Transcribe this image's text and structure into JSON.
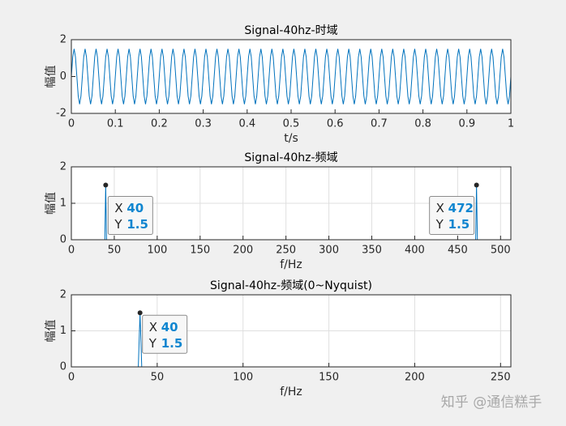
{
  "chart_data": [
    {
      "type": "line",
      "title": "Signal-40hz-时域",
      "xlabel": "t/s",
      "ylabel": "幅值",
      "color": "#0072bd",
      "grid": false,
      "xlim": [
        0,
        1
      ],
      "xticks": [
        0,
        0.1,
        0.2,
        0.3,
        0.4,
        0.5,
        0.6,
        0.7,
        0.8,
        0.9,
        1
      ],
      "ylim": [
        -2,
        2
      ],
      "yticks": [
        -2,
        0,
        2
      ],
      "x": [
        0,
        0.003125,
        0.00625,
        0.009375,
        0.0125,
        0.015625,
        0.01875,
        0.021875,
        0.025,
        0.028125,
        0.03125,
        0.034375,
        0.0375,
        0.040625,
        0.04375,
        0.046875,
        0.05,
        0.053125,
        0.05625,
        0.059375,
        0.0625,
        0.065625,
        0.06875,
        0.071875,
        0.075,
        0.078125,
        0.08125,
        0.084375,
        0.0875,
        0.090625,
        0.09375,
        0.096875,
        0.1,
        0.103125,
        0.10625,
        0.109375,
        0.1125,
        0.115625,
        0.11875,
        0.121875,
        0.125,
        0.128125,
        0.13125,
        0.134375,
        0.1375,
        0.140625,
        0.14375,
        0.146875,
        0.15,
        0.153125,
        0.15625,
        0.159375,
        0.1625,
        0.165625,
        0.16875,
        0.171875,
        0.175,
        0.178125,
        0.18125,
        0.184375,
        0.1875,
        0.190625,
        0.19375,
        0.196875,
        0.2,
        0.203125,
        0.20625,
        0.209375,
        0.2125,
        0.215625,
        0.21875,
        0.221875,
        0.225,
        0.228125,
        0.23125,
        0.234375,
        0.2375,
        0.240625,
        0.24375,
        0.246875,
        0.25,
        0.253125,
        0.25625,
        0.259375,
        0.2625,
        0.265625,
        0.26875,
        0.271875,
        0.275,
        0.278125,
        0.28125,
        0.284375,
        0.2875,
        0.290625,
        0.29375,
        0.296875,
        0.3,
        0.303125,
        0.30625,
        0.309375,
        0.3125,
        0.315625,
        0.31875,
        0.321875,
        0.325,
        0.328125,
        0.33125,
        0.334375,
        0.3375,
        0.340625,
        0.34375,
        0.346875,
        0.35,
        0.353125,
        0.35625,
        0.359375,
        0.3625,
        0.365625,
        0.36875,
        0.371875,
        0.375,
        0.378125,
        0.38125,
        0.384375,
        0.3875,
        0.390625,
        0.39375,
        0.396875,
        0.4,
        0.403125,
        0.40625,
        0.409375,
        0.4125,
        0.415625,
        0.41875,
        0.421875,
        0.425,
        0.428125,
        0.43125,
        0.434375,
        0.4375,
        0.440625,
        0.44375,
        0.446875,
        0.45,
        0.453125,
        0.45625,
        0.459375,
        0.4625,
        0.465625,
        0.46875,
        0.471875,
        0.475,
        0.478125,
        0.48125,
        0.484375,
        0.4875,
        0.490625,
        0.49375,
        0.496875,
        0.5,
        0.503125,
        0.50625,
        0.509375,
        0.5125,
        0.515625,
        0.51875,
        0.521875,
        0.525,
        0.528125,
        0.53125,
        0.534375,
        0.5375,
        0.540625,
        0.54375,
        0.546875,
        0.55,
        0.553125,
        0.55625,
        0.559375,
        0.5625,
        0.565625,
        0.56875,
        0.571875,
        0.575,
        0.578125,
        0.58125,
        0.584375,
        0.5875,
        0.590625,
        0.59375,
        0.596875,
        0.6,
        0.603125,
        0.60625,
        0.609375,
        0.6125,
        0.615625,
        0.61875,
        0.621875,
        0.625,
        0.628125,
        0.63125,
        0.634375,
        0.6375,
        0.640625,
        0.64375,
        0.646875,
        0.65,
        0.653125,
        0.65625,
        0.659375,
        0.6625,
        0.665625,
        0.66875,
        0.671875,
        0.675,
        0.678125,
        0.68125,
        0.684375,
        0.6875,
        0.690625,
        0.69375,
        0.696875,
        0.7,
        0.703125,
        0.70625,
        0.709375,
        0.7125,
        0.715625,
        0.71875,
        0.721875,
        0.725,
        0.728125,
        0.73125,
        0.734375,
        0.7375,
        0.740625,
        0.74375,
        0.746875,
        0.75,
        0.753125,
        0.75625,
        0.759375,
        0.7625,
        0.765625,
        0.76875,
        0.771875,
        0.775,
        0.778125,
        0.78125,
        0.784375,
        0.7875,
        0.790625,
        0.79375,
        0.796875,
        0.8,
        0.803125,
        0.80625,
        0.809375,
        0.8125,
        0.815625,
        0.81875,
        0.821875,
        0.825,
        0.828125,
        0.83125,
        0.834375,
        0.8375,
        0.840625,
        0.84375,
        0.846875,
        0.85,
        0.853125,
        0.85625,
        0.859375,
        0.8625,
        0.865625,
        0.86875,
        0.871875,
        0.875,
        0.878125,
        0.88125,
        0.884375,
        0.8875,
        0.890625,
        0.89375,
        0.896875,
        0.9,
        0.903125,
        0.90625,
        0.909375,
        0.9125,
        0.915625,
        0.91875,
        0.921875,
        0.925,
        0.928125,
        0.93125,
        0.934375,
        0.9375,
        0.940625,
        0.94375,
        0.946875,
        0.95,
        0.953125,
        0.95625,
        0.959375,
        0.9625,
        0.965625,
        0.96875,
        0.971875,
        0.975,
        0.978125,
        0.98125,
        0.984375,
        0.9875,
        0.990625,
        0.99375,
        0.996875,
        1
      ],
      "values": [
        0,
        1.06,
        1.5,
        1.06,
        0,
        -1.06,
        -1.5,
        -1.06,
        0,
        1.06,
        1.5,
        1.06,
        0,
        -1.06,
        -1.5,
        -1.06,
        0,
        1.06,
        1.5,
        1.06,
        0,
        -1.06,
        -1.5,
        -1.06,
        0,
        1.06,
        1.5,
        1.06,
        0,
        -1.06,
        -1.5,
        -1.06,
        0,
        1.06,
        1.5,
        1.06,
        0,
        -1.06,
        -1.5,
        -1.06,
        0,
        1.06,
        1.5,
        1.06,
        0,
        -1.06,
        -1.5,
        -1.06,
        0,
        1.06,
        1.5,
        1.06,
        0,
        -1.06,
        -1.5,
        -1.06,
        0,
        1.06,
        1.5,
        1.06,
        0,
        -1.06,
        -1.5,
        -1.06,
        0,
        1.06,
        1.5,
        1.06,
        0,
        -1.06,
        -1.5,
        -1.06,
        0,
        1.06,
        1.5,
        1.06,
        0,
        -1.06,
        -1.5,
        -1.06,
        0,
        1.06,
        1.5,
        1.06,
        0,
        -1.06,
        -1.5,
        -1.06,
        0,
        1.06,
        1.5,
        1.06,
        0,
        -1.06,
        -1.5,
        -1.06,
        0,
        1.06,
        1.5,
        1.06,
        0,
        -1.06,
        -1.5,
        -1.06,
        0,
        1.06,
        1.5,
        1.06,
        0,
        -1.06,
        -1.5,
        -1.06,
        0,
        1.06,
        1.5,
        1.06,
        0,
        -1.06,
        -1.5,
        -1.06,
        0,
        1.06,
        1.5,
        1.06,
        0,
        -1.06,
        -1.5,
        -1.06,
        0,
        1.06,
        1.5,
        1.06,
        0,
        -1.06,
        -1.5,
        -1.06,
        0,
        1.06,
        1.5,
        1.06,
        0,
        -1.06,
        -1.5,
        -1.06,
        0,
        1.06,
        1.5,
        1.06,
        0,
        -1.06,
        -1.5,
        -1.06,
        0,
        1.06,
        1.5,
        1.06,
        0,
        -1.06,
        -1.5,
        -1.06,
        0,
        1.06,
        1.5,
        1.06,
        0,
        -1.06,
        -1.5,
        -1.06,
        0,
        1.06,
        1.5,
        1.06,
        0,
        -1.06,
        -1.5,
        -1.06,
        0,
        1.06,
        1.5,
        1.06,
        0,
        -1.06,
        -1.5,
        -1.06,
        0,
        1.06,
        1.5,
        1.06,
        0,
        -1.06,
        -1.5,
        -1.06,
        0,
        1.06,
        1.5,
        1.06,
        0,
        -1.06,
        -1.5,
        -1.06,
        0,
        1.06,
        1.5,
        1.06,
        0,
        -1.06,
        -1.5,
        -1.06,
        0,
        1.06,
        1.5,
        1.06,
        0,
        -1.06,
        -1.5,
        -1.06,
        0,
        1.06,
        1.5,
        1.06,
        0,
        -1.06,
        -1.5,
        -1.06,
        0,
        1.06,
        1.5,
        1.06,
        0,
        -1.06,
        -1.5,
        -1.06,
        0,
        1.06,
        1.5,
        1.06,
        0,
        -1.06,
        -1.5,
        -1.06,
        0,
        1.06,
        1.5,
        1.06,
        0,
        -1.06,
        -1.5,
        -1.06,
        0,
        1.06,
        1.5,
        1.06,
        0,
        -1.06,
        -1.5,
        -1.06,
        0,
        1.06,
        1.5,
        1.06,
        0,
        -1.06,
        -1.5,
        -1.06,
        0,
        1.06,
        1.5,
        1.06,
        0,
        -1.06,
        -1.5,
        -1.06,
        0,
        1.06,
        1.5,
        1.06,
        0,
        -1.06,
        -1.5,
        -1.06,
        0,
        1.06,
        1.5,
        1.06,
        0,
        -1.06,
        -1.5,
        -1.06,
        0,
        1.06,
        1.5,
        1.06,
        0,
        -1.06,
        -1.5,
        -1.06,
        0,
        1.06,
        1.5,
        1.06,
        0,
        -1.06,
        -1.5,
        -1.06,
        0,
        1.06,
        1.5,
        1.06,
        0,
        -1.06,
        -1.5,
        -1.06,
        0,
        1.06,
        1.5,
        1.06,
        0,
        -1.06,
        -1.5,
        -1.06,
        0
      ]
    },
    {
      "type": "line",
      "title": "Signal-40hz-频域",
      "xlabel": "f/Hz",
      "ylabel": "幅值",
      "color": "#0072bd",
      "grid": true,
      "xlim": [
        0,
        512
      ],
      "xticks": [
        0,
        50,
        100,
        150,
        200,
        250,
        300,
        350,
        400,
        450,
        500
      ],
      "ylim": [
        0,
        2
      ],
      "yticks": [
        0,
        1,
        2
      ],
      "x": [
        0,
        39,
        40,
        41,
        471,
        472,
        473,
        511
      ],
      "values": [
        0,
        0,
        1.5,
        0,
        0,
        1.5,
        0,
        0
      ],
      "datatip_labels": [
        "X",
        "Y"
      ],
      "datatips": [
        {
          "x": 40,
          "y": 1.5,
          "side": "right"
        },
        {
          "x": 472,
          "y": 1.5,
          "side": "left"
        }
      ]
    },
    {
      "type": "line",
      "title": "Signal-40hz-频域(0~Nyquist)",
      "xlabel": "f/Hz",
      "ylabel": "幅值",
      "color": "#0072bd",
      "grid": true,
      "xlim": [
        0,
        256
      ],
      "xticks": [
        0,
        50,
        100,
        150,
        200,
        250
      ],
      "ylim": [
        0,
        2
      ],
      "yticks": [
        0,
        1,
        2
      ],
      "x": [
        0,
        39,
        40,
        41,
        255
      ],
      "values": [
        0,
        0,
        1.5,
        0,
        0
      ],
      "datatip_labels": [
        "X",
        "Y"
      ],
      "datatips": [
        {
          "x": 40,
          "y": 1.5,
          "side": "right"
        }
      ]
    }
  ],
  "watermark": "知乎 @通信糕手"
}
